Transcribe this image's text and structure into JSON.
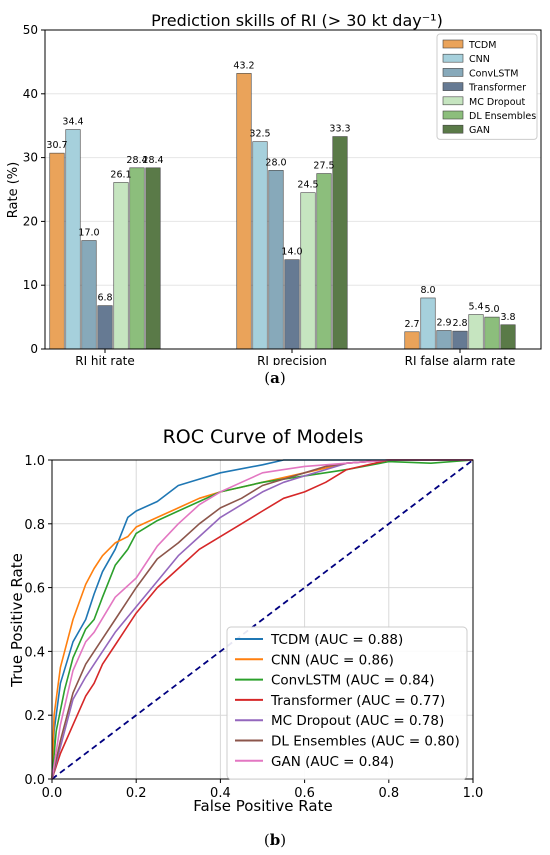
{
  "figure_a": {
    "caption_open": "(",
    "caption_letter": "a",
    "caption_close": ")"
  },
  "figure_b": {
    "caption_open": "(",
    "caption_letter": "b",
    "caption_close": ")"
  },
  "chart_data": [
    {
      "type": "bar",
      "title": "Prediction skills of RI (> 30 kt day⁻¹)",
      "xlabel": "",
      "ylabel": "Rate (%)",
      "ylim": [
        0,
        50
      ],
      "yticks": [
        0,
        10,
        20,
        30,
        40,
        50
      ],
      "categories": [
        "RI hit rate",
        "RI precision",
        "RI false alarm rate"
      ],
      "grid": "horizontal",
      "legend": "top-right",
      "series": [
        {
          "name": "TCDM",
          "color": "#eaa35a",
          "values": [
            30.7,
            43.2,
            2.7
          ]
        },
        {
          "name": "CNN",
          "color": "#a6d0dc",
          "values": [
            34.4,
            32.5,
            8.0
          ]
        },
        {
          "name": "ConvLSTM",
          "color": "#87a9ba",
          "values": [
            17.0,
            28.0,
            2.9
          ]
        },
        {
          "name": "Transformer",
          "color": "#667a93",
          "values": [
            6.8,
            14.0,
            2.8
          ]
        },
        {
          "name": "MC Dropout",
          "color": "#c6e5c0",
          "values": [
            26.1,
            24.5,
            5.4
          ]
        },
        {
          "name": "DL Ensembles",
          "color": "#8cbe7c",
          "values": [
            28.4,
            27.5,
            5.0
          ]
        },
        {
          "name": "GAN",
          "color": "#5a7a48",
          "values": [
            28.4,
            33.3,
            3.8
          ]
        }
      ],
      "labels": [
        [
          "30.7",
          "43.2",
          "2.7"
        ],
        [
          "34.4",
          "32.5",
          "8.0"
        ],
        [
          "17.0",
          "28.0",
          "2.9"
        ],
        [
          "6.8",
          "14.0",
          "2.8"
        ],
        [
          "26.1",
          "24.5",
          "5.4"
        ],
        [
          "28.4",
          "27.5",
          "5.0"
        ],
        [
          "28.4",
          "33.3",
          "3.8"
        ]
      ]
    },
    {
      "type": "line",
      "title": "ROC Curve of Models",
      "xlabel": "False Positive Rate",
      "ylabel": "True Positive Rate",
      "xlim": [
        0,
        1
      ],
      "ylim": [
        0,
        1
      ],
      "xticks": [
        "0.0",
        "0.2",
        "0.4",
        "0.6",
        "0.8",
        "1.0"
      ],
      "yticks": [
        "0.0",
        "0.2",
        "0.4",
        "0.6",
        "0.8",
        "1.0"
      ],
      "grid": true,
      "legend": "lower-right",
      "diagonal_color": "#000080",
      "series": [
        {
          "name": "TCDM (AUC = 0.88)",
          "color": "#1f77b4",
          "x": [
            0,
            0.005,
            0.02,
            0.05,
            0.08,
            0.1,
            0.12,
            0.15,
            0.18,
            0.2,
            0.25,
            0.3,
            0.35,
            0.4,
            0.5,
            0.55,
            0.6,
            0.7,
            0.8,
            1
          ],
          "y": [
            0,
            0.15,
            0.3,
            0.43,
            0.5,
            0.58,
            0.65,
            0.72,
            0.82,
            0.84,
            0.87,
            0.92,
            0.94,
            0.96,
            0.985,
            1.0,
            1.0,
            1.0,
            1.0,
            1.0
          ]
        },
        {
          "name": "CNN (AUC = 0.86)",
          "color": "#ff7f0e",
          "x": [
            0,
            0.005,
            0.02,
            0.05,
            0.08,
            0.1,
            0.12,
            0.15,
            0.18,
            0.2,
            0.25,
            0.3,
            0.35,
            0.4,
            0.5,
            0.6,
            0.7,
            0.8,
            1
          ],
          "y": [
            0,
            0.2,
            0.35,
            0.5,
            0.61,
            0.66,
            0.7,
            0.74,
            0.76,
            0.79,
            0.82,
            0.85,
            0.88,
            0.9,
            0.93,
            0.96,
            0.99,
            1.0,
            1.0
          ]
        },
        {
          "name": "ConvLSTM (AUC = 0.84)",
          "color": "#2ca02c",
          "x": [
            0,
            0.01,
            0.03,
            0.05,
            0.08,
            0.1,
            0.12,
            0.15,
            0.18,
            0.2,
            0.25,
            0.3,
            0.35,
            0.4,
            0.5,
            0.6,
            0.7,
            0.8,
            0.9,
            1
          ],
          "y": [
            0,
            0.15,
            0.28,
            0.38,
            0.47,
            0.5,
            0.57,
            0.67,
            0.72,
            0.77,
            0.81,
            0.84,
            0.87,
            0.9,
            0.93,
            0.95,
            0.97,
            0.995,
            0.99,
            1.0
          ]
        },
        {
          "name": "Transformer (AUC = 0.77)",
          "color": "#d62728",
          "x": [
            0,
            0.02,
            0.05,
            0.08,
            0.1,
            0.12,
            0.15,
            0.2,
            0.25,
            0.3,
            0.35,
            0.4,
            0.45,
            0.5,
            0.55,
            0.6,
            0.65,
            0.7,
            0.8,
            0.9,
            1
          ],
          "y": [
            0,
            0.08,
            0.17,
            0.26,
            0.3,
            0.36,
            0.42,
            0.52,
            0.6,
            0.66,
            0.72,
            0.76,
            0.8,
            0.84,
            0.88,
            0.9,
            0.93,
            0.97,
            1.0,
            1.0,
            1.0
          ]
        },
        {
          "name": "MC Dropout (AUC = 0.78)",
          "color": "#9467bd",
          "x": [
            0,
            0.02,
            0.05,
            0.08,
            0.1,
            0.15,
            0.2,
            0.25,
            0.3,
            0.35,
            0.4,
            0.45,
            0.5,
            0.55,
            0.6,
            0.65,
            0.7,
            0.8,
            0.9,
            1
          ],
          "y": [
            0,
            0.1,
            0.25,
            0.32,
            0.36,
            0.46,
            0.54,
            0.62,
            0.7,
            0.76,
            0.82,
            0.86,
            0.9,
            0.93,
            0.95,
            0.97,
            0.99,
            1.0,
            1.0,
            1.0
          ]
        },
        {
          "name": "DL Ensembles (AUC = 0.80)",
          "color": "#8c564b",
          "x": [
            0,
            0.02,
            0.05,
            0.08,
            0.1,
            0.15,
            0.2,
            0.25,
            0.3,
            0.35,
            0.4,
            0.45,
            0.5,
            0.55,
            0.6,
            0.65,
            0.7,
            0.8,
            0.9,
            1
          ],
          "y": [
            0,
            0.12,
            0.27,
            0.36,
            0.4,
            0.5,
            0.6,
            0.69,
            0.74,
            0.8,
            0.85,
            0.88,
            0.92,
            0.94,
            0.96,
            0.98,
            0.99,
            1.0,
            1.0,
            1.0
          ]
        },
        {
          "name": "GAN (AUC = 0.84)",
          "color": "#e377c2",
          "x": [
            0,
            0.02,
            0.05,
            0.08,
            0.1,
            0.15,
            0.2,
            0.25,
            0.3,
            0.35,
            0.4,
            0.45,
            0.5,
            0.55,
            0.6,
            0.7,
            0.8,
            0.9,
            1
          ],
          "y": [
            0,
            0.17,
            0.34,
            0.43,
            0.46,
            0.57,
            0.63,
            0.73,
            0.8,
            0.86,
            0.9,
            0.93,
            0.96,
            0.97,
            0.98,
            0.99,
            1.0,
            1.0,
            1.0
          ]
        }
      ]
    }
  ]
}
